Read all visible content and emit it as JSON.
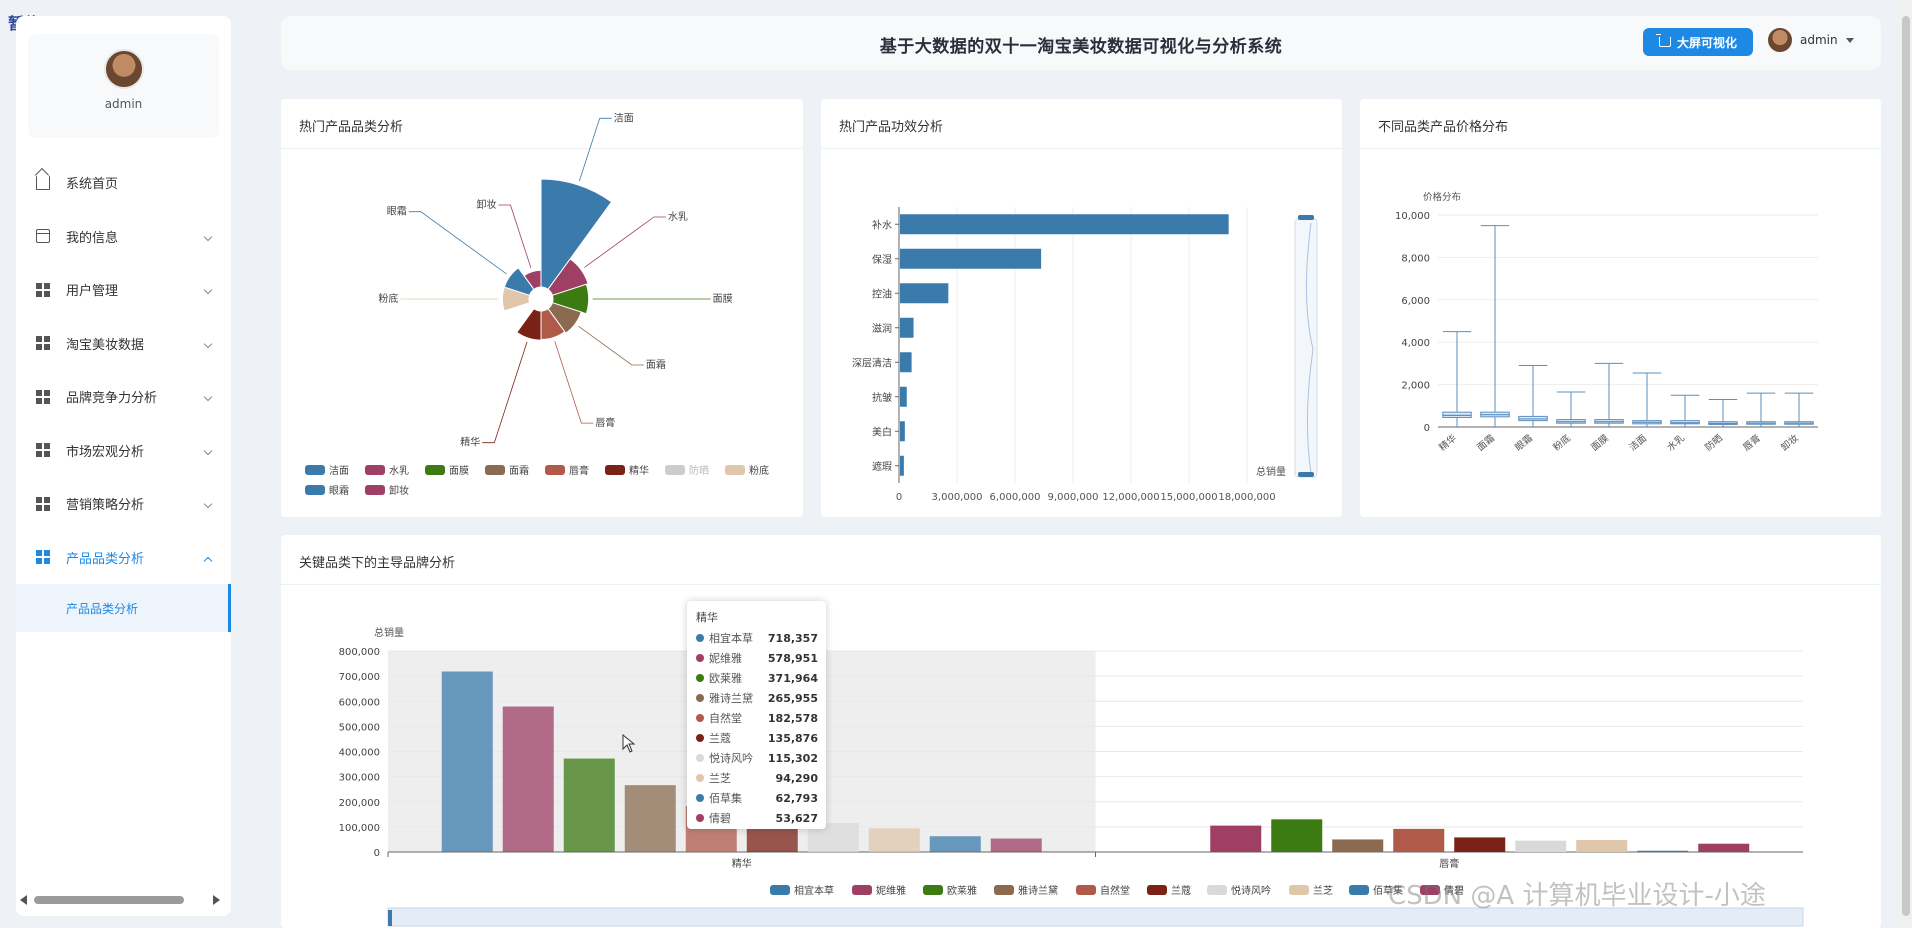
{
  "corner_tag": "暂停",
  "app": {
    "title": "基于大数据的双十一淘宝美妆数据可视化与分析系统"
  },
  "header": {
    "big_screen_label": "大屏可视化",
    "username": "admin"
  },
  "sidebar": {
    "profile_name": "admin",
    "items": [
      {
        "label": "系统首页",
        "icon": "home-icon"
      },
      {
        "label": "我的信息",
        "icon": "card-icon"
      },
      {
        "label": "用户管理",
        "icon": "grid-icon"
      },
      {
        "label": "淘宝美妆数据",
        "icon": "grid-icon"
      },
      {
        "label": "品牌竞争力分析",
        "icon": "grid-icon"
      },
      {
        "label": "市场宏观分析",
        "icon": "grid-icon"
      },
      {
        "label": "营销策略分析",
        "icon": "grid-icon"
      },
      {
        "label": "产品品类分析",
        "icon": "grid-icon"
      }
    ],
    "active_sub": "产品品类分析"
  },
  "panels": {
    "p1": "热门产品品类分析",
    "p2": "热门产品功效分析",
    "p3": "不同品类产品价格分布",
    "p4": "关键品类下的主导品牌分析"
  },
  "colors": {
    "accent": "#1e88e5",
    "palette": [
      "#3b7bab",
      "#9e3f63",
      "#3c7a12",
      "#8a6b50",
      "#b05a4a",
      "#7a2215",
      "#d9d9d9",
      "#e0c7ac",
      "#3b7bab",
      "#9e3f63"
    ]
  },
  "chart_data": [
    {
      "type": "pie",
      "subtype": "nightingale-rose",
      "title": "热门产品品类分析",
      "categories": [
        "洁面",
        "水乳",
        "面膜",
        "面霜",
        "唇膏",
        "精华",
        "防晒",
        "粉底",
        "眼霜",
        "卸妆"
      ],
      "legend": [
        "洁面",
        "水乳",
        "面膜",
        "面霜",
        "唇膏",
        "精华",
        "防晒",
        "粉底",
        "眼霜",
        "卸妆"
      ],
      "legend_disabled": [
        "防晒"
      ],
      "values": [
        100,
        40,
        36,
        26,
        23,
        24,
        0,
        20,
        20,
        8
      ]
    },
    {
      "type": "bar",
      "orientation": "horizontal",
      "title": "热门产品功效分析",
      "categories": [
        "补水",
        "保湿",
        "控油",
        "滋润",
        "深层清洁",
        "抗皱",
        "美白",
        "遮瑕"
      ],
      "values": [
        17000000,
        7300000,
        2500000,
        700000,
        600000,
        350000,
        250000,
        200000
      ],
      "xlabel": "总销量",
      "x_ticks": [
        "0",
        "3,000,000",
        "6,000,000",
        "9,000,000",
        "12,000,000",
        "15,000,000",
        "18,000,000"
      ],
      "xlim": [
        0,
        19500000
      ]
    },
    {
      "type": "boxplot",
      "title": "不同品类产品价格分布",
      "ylabel": "价格分布",
      "categories": [
        "精华",
        "面霜",
        "眼霜",
        "粉底",
        "面膜",
        "洁面",
        "水乳",
        "防晒",
        "唇膏",
        "卸妆"
      ],
      "whisker_high": [
        4500,
        9500,
        2900,
        1650,
        3000,
        2550,
        1500,
        1300,
        1600,
        1600
      ],
      "q3": [
        700,
        700,
        500,
        350,
        350,
        300,
        300,
        250,
        250,
        250
      ],
      "median": [
        550,
        580,
        380,
        250,
        250,
        220,
        200,
        170,
        180,
        180
      ],
      "q1": [
        450,
        480,
        300,
        180,
        180,
        150,
        150,
        120,
        130,
        130
      ],
      "whisker_low": [
        0,
        0,
        0,
        0,
        0,
        0,
        0,
        0,
        0,
        0
      ],
      "y_ticks": [
        "0",
        "2,000",
        "4,000",
        "6,000",
        "8,000",
        "10,000"
      ],
      "ylim": [
        0,
        10000
      ]
    },
    {
      "type": "bar",
      "title": "关键品类下的主导品牌分析",
      "ylabel": "总销量",
      "categories": [
        "精华",
        "唇膏"
      ],
      "series": [
        {
          "name": "相宜本草",
          "values": [
            718357,
            0
          ]
        },
        {
          "name": "妮维雅",
          "values": [
            578951,
            105000
          ]
        },
        {
          "name": "欧莱雅",
          "values": [
            371964,
            130000
          ]
        },
        {
          "name": "雅诗兰黛",
          "values": [
            265955,
            50000
          ]
        },
        {
          "name": "自然堂",
          "values": [
            182578,
            92000
          ]
        },
        {
          "name": "兰蔻",
          "values": [
            135876,
            58000
          ]
        },
        {
          "name": "悦诗风吟",
          "values": [
            115302,
            45000
          ]
        },
        {
          "name": "兰芝",
          "values": [
            94290,
            48000
          ]
        },
        {
          "name": "佰草集",
          "values": [
            62793,
            5000
          ]
        },
        {
          "name": "倩碧",
          "values": [
            53627,
            33000
          ]
        }
      ],
      "y_ticks": [
        "0",
        "100,000",
        "200,000",
        "300,000",
        "400,000",
        "500,000",
        "600,000",
        "700,000",
        "800,000"
      ],
      "ylim": [
        0,
        800000
      ]
    }
  ],
  "tooltip": {
    "title": "精华",
    "rows": [
      {
        "name": "相宜本草",
        "value": "718,357"
      },
      {
        "name": "妮维雅",
        "value": "578,951"
      },
      {
        "name": "欧莱雅",
        "value": "371,964"
      },
      {
        "name": "雅诗兰黛",
        "value": "265,955"
      },
      {
        "name": "自然堂",
        "value": "182,578"
      },
      {
        "name": "兰蔻",
        "value": "135,876"
      },
      {
        "name": "悦诗风吟",
        "value": "115,302"
      },
      {
        "name": "兰芝",
        "value": "94,290"
      },
      {
        "name": "佰草集",
        "value": "62,793"
      },
      {
        "name": "倩碧",
        "value": "53,627"
      }
    ]
  },
  "watermark": "CSDN @A 计算机毕业设计-小途"
}
